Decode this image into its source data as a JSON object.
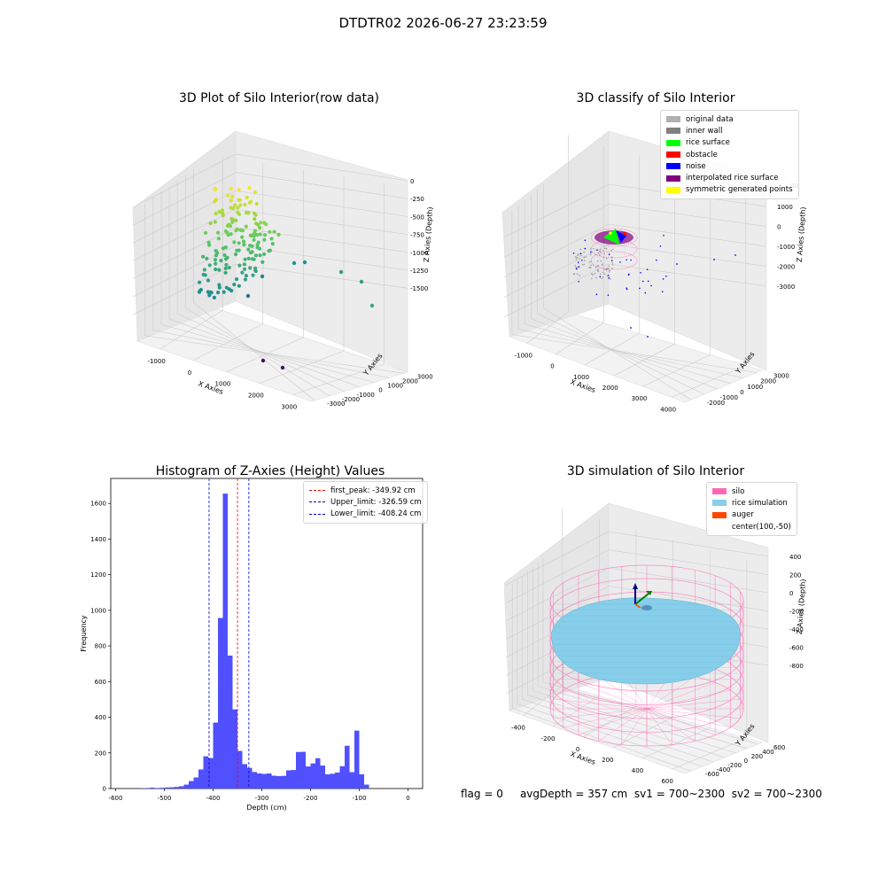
{
  "figure": {
    "suptitle": "DTDTR02 2026-06-27 23:23:59",
    "status": {
      "flag": "flag = 0",
      "avg": "avgDepth = 357 cm",
      "sv1": "sv1 = 700~2300",
      "sv2": "sv2 = 700~2300"
    }
  },
  "chart_data": [
    {
      "type": "scatter",
      "projection": "3d",
      "title": "3D Plot of Silo Interior(row data)",
      "xlabel": "X Axies",
      "ylabel": "Y Axies",
      "zlabel": "Z Axies (Depth)",
      "x_ticks": [
        "-1000",
        "0",
        "1000",
        "2000",
        "3000"
      ],
      "y_ticks": [
        "-3000",
        "-2000",
        "-1000",
        "0",
        "1000",
        "2000",
        "3000"
      ],
      "z_ticks": [
        "0",
        "-250",
        "-500",
        "-750",
        "-1000",
        "-1250",
        "-1500"
      ],
      "colormap": "viridis",
      "grid": true
    },
    {
      "type": "scatter",
      "projection": "3d",
      "title": "3D classify of Silo Interior",
      "xlabel": "X Axies",
      "ylabel": "Y Axies",
      "zlabel": "Z Axies (Depth)",
      "x_ticks": [
        "-1000",
        "0",
        "1000",
        "2000",
        "3000",
        "4000"
      ],
      "y_ticks": [
        "-2000",
        "-1000",
        "0",
        "1000",
        "2000",
        "3000"
      ],
      "z_ticks": [
        "1000",
        "0",
        "-1000",
        "-2000",
        "-3000"
      ],
      "legend": {
        "placement": "top-right",
        "entries": [
          {
            "label": "original data",
            "color": "#b0b0b0"
          },
          {
            "label": "inner wall",
            "color": "#808080"
          },
          {
            "label": "rice surface",
            "color": "#00ff00"
          },
          {
            "label": "obstacle",
            "color": "#ff0000"
          },
          {
            "label": "noise",
            "color": "#0000ff"
          },
          {
            "label": "interpolated rice surface",
            "color": "#800080"
          },
          {
            "label": "symmetric generated points",
            "color": "#ffff00"
          }
        ]
      },
      "clipped_tick": "00",
      "grid": true
    },
    {
      "type": "bar",
      "subtype": "histogram",
      "title": "Histogram of Z-Axies (Height) Values",
      "xlabel": "Depth (cm)",
      "ylabel": "Frequency",
      "xlim": [
        -610,
        30
      ],
      "ylim": [
        0,
        1740
      ],
      "bin_width": 10,
      "bin_start": -550,
      "values": [
        2,
        1,
        5,
        3,
        4,
        6,
        7,
        9,
        13,
        22,
        42,
        62,
        107,
        181,
        171,
        370,
        957,
        1655,
        746,
        444,
        211,
        137,
        116,
        93,
        85,
        82,
        85,
        72,
        70,
        71,
        102,
        104,
        205,
        206,
        124,
        141,
        170,
        129,
        80,
        83,
        90,
        125,
        240,
        92,
        325,
        80,
        22
      ],
      "x_ticks": [
        -600,
        -500,
        -400,
        -300,
        -200,
        -100,
        0
      ],
      "y_ticks": [
        0,
        200,
        400,
        600,
        800,
        1000,
        1200,
        1400,
        1600
      ],
      "bar_color": "#5050ff",
      "vlines": [
        {
          "label": "first_peak: -349.92 cm",
          "x": -349.92,
          "color": "#ff0000"
        },
        {
          "label": "Upper_limit: -326.59 cm",
          "x": -326.59,
          "color": "#0000cc"
        },
        {
          "label": "Lower_limit: -408.24 cm",
          "x": -408.24,
          "color": "#0000cc"
        }
      ],
      "legend": {
        "placement": "top-right"
      },
      "grid": false
    },
    {
      "type": "area",
      "projection": "3d",
      "title": "3D simulation of Silo Interior",
      "xlabel": "X Axies",
      "ylabel": "Y Axies",
      "zlabel": "Z Axies (Depth)",
      "x_ticks": [
        "-400",
        "-200",
        "0",
        "200",
        "400",
        "600"
      ],
      "y_ticks": [
        "600",
        "400",
        "200",
        "0",
        "-200",
        "-400",
        "-600"
      ],
      "z_ticks": [
        "400",
        "200",
        "0",
        "-200",
        "-400",
        "-600",
        "-800"
      ],
      "legend": {
        "placement": "top-right",
        "entries": [
          {
            "label": "silo",
            "color": "#ff69b4"
          },
          {
            "label": "rice simulation",
            "color": "#87ceeb"
          },
          {
            "label": "auger",
            "color": "#ff4500"
          },
          {
            "label": "center(100,-50)",
            "color": ""
          }
        ]
      },
      "grid": true
    }
  ]
}
